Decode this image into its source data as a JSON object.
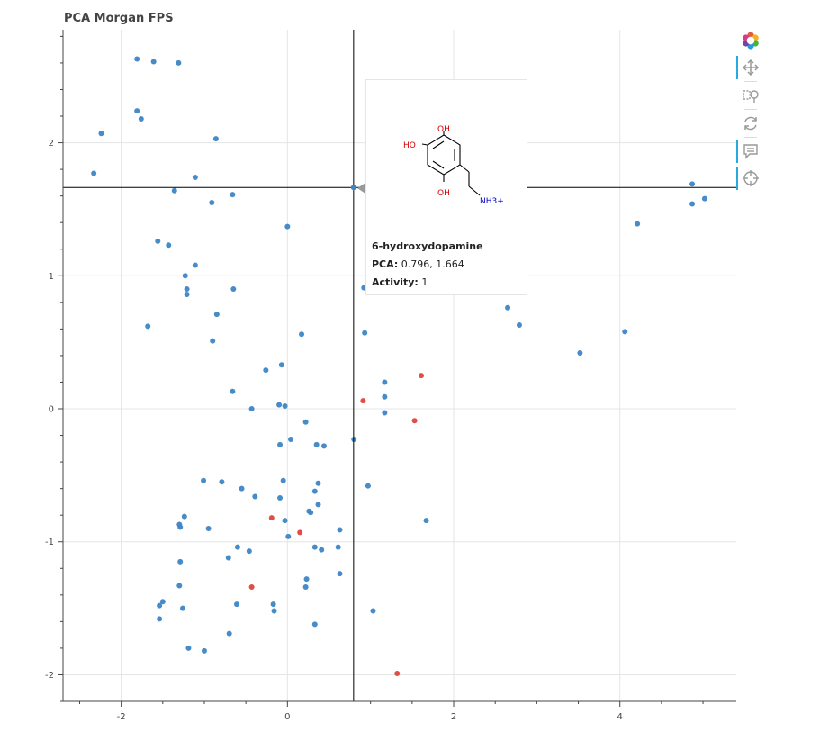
{
  "title": "PCA Morgan FPS",
  "colors": {
    "inactive": "#3d85c6",
    "active": "#e0453c",
    "grid": "#e5e5e5",
    "crosshair": "#000000"
  },
  "toolbar": [
    {
      "name": "bokeh-logo-icon",
      "active": false
    },
    {
      "name": "pan-icon",
      "active": true
    },
    {
      "name": "box-zoom-icon",
      "active": false
    },
    {
      "name": "reset-icon",
      "active": false
    },
    {
      "name": "hover-icon",
      "active": true
    },
    {
      "name": "crosshair-icon",
      "active": true
    }
  ],
  "tooltip": {
    "name": "6-hydroxydopamine",
    "pca_key": "PCA:",
    "pca_value": "0.796, 1.664",
    "activity_key": "Activity:",
    "activity_value": "1",
    "atoms": {
      "oh1": "OH",
      "ho": "HO",
      "oh2": "OH",
      "amine": "NH3+"
    }
  },
  "chart_data": {
    "type": "scatter",
    "title": "PCA Morgan FPS",
    "xlabel": "",
    "ylabel": "",
    "xlim": [
      -2.7,
      5.4
    ],
    "ylim": [
      -2.2,
      2.85
    ],
    "xticks": [
      -2,
      0,
      2,
      4
    ],
    "yticks": [
      -2,
      -1,
      0,
      1,
      2
    ],
    "grid": true,
    "crosshair": [
      0.796,
      1.664
    ],
    "series": [
      {
        "activity": 0,
        "points": [
          [
            -1.81,
            2.63
          ],
          [
            -1.61,
            2.61
          ],
          [
            -1.31,
            2.6
          ],
          [
            -1.81,
            2.24
          ],
          [
            -1.76,
            2.18
          ],
          [
            -2.24,
            2.07
          ],
          [
            -0.86,
            2.03
          ],
          [
            -2.33,
            1.77
          ],
          [
            -1.11,
            1.74
          ],
          [
            -1.36,
            1.64
          ],
          [
            -0.66,
            1.61
          ],
          [
            -0.91,
            1.55
          ],
          [
            0.0,
            1.37
          ],
          [
            -1.56,
            1.26
          ],
          [
            -1.43,
            1.23
          ],
          [
            -1.11,
            1.08
          ],
          [
            -1.23,
            1.0
          ],
          [
            -1.21,
            0.9
          ],
          [
            -1.21,
            0.86
          ],
          [
            -0.65,
            0.9
          ],
          [
            -0.85,
            0.71
          ],
          [
            -1.68,
            0.62
          ],
          [
            0.17,
            0.56
          ],
          [
            -0.9,
            0.51
          ],
          [
            0.93,
            0.57
          ],
          [
            -0.26,
            0.29
          ],
          [
            -0.07,
            0.33
          ],
          [
            1.17,
            0.2
          ],
          [
            -0.66,
            0.13
          ],
          [
            1.17,
            0.09
          ],
          [
            -0.43,
            0.0
          ],
          [
            -0.1,
            0.03
          ],
          [
            -0.03,
            0.02
          ],
          [
            1.17,
            -0.03
          ],
          [
            0.22,
            -0.1
          ],
          [
            0.04,
            -0.23
          ],
          [
            0.8,
            -0.23
          ],
          [
            -0.09,
            -0.27
          ],
          [
            0.35,
            -0.27
          ],
          [
            0.44,
            -0.28
          ],
          [
            -1.01,
            -0.54
          ],
          [
            -0.79,
            -0.55
          ],
          [
            -0.05,
            -0.54
          ],
          [
            0.37,
            -0.56
          ],
          [
            0.97,
            -0.58
          ],
          [
            -0.55,
            -0.6
          ],
          [
            0.33,
            -0.62
          ],
          [
            -0.39,
            -0.66
          ],
          [
            -0.09,
            -0.67
          ],
          [
            0.37,
            -0.72
          ],
          [
            0.26,
            -0.77
          ],
          [
            0.28,
            -0.78
          ],
          [
            -1.24,
            -0.81
          ],
          [
            -0.03,
            -0.84
          ],
          [
            1.67,
            -0.84
          ],
          [
            -1.3,
            -0.87
          ],
          [
            -1.29,
            -0.89
          ],
          [
            -0.95,
            -0.9
          ],
          [
            0.63,
            -0.91
          ],
          [
            0.01,
            -0.96
          ],
          [
            -0.6,
            -1.04
          ],
          [
            0.33,
            -1.04
          ],
          [
            0.61,
            -1.04
          ],
          [
            0.41,
            -1.06
          ],
          [
            -0.46,
            -1.07
          ],
          [
            -0.71,
            -1.12
          ],
          [
            -1.29,
            -1.15
          ],
          [
            0.63,
            -1.24
          ],
          [
            0.23,
            -1.28
          ],
          [
            -1.3,
            -1.33
          ],
          [
            0.22,
            -1.34
          ],
          [
            -0.61,
            -1.47
          ],
          [
            -0.17,
            -1.47
          ],
          [
            -1.5,
            -1.45
          ],
          [
            -1.54,
            -1.48
          ],
          [
            -1.26,
            -1.5
          ],
          [
            -0.16,
            -1.52
          ],
          [
            1.03,
            -1.52
          ],
          [
            -1.54,
            -1.58
          ],
          [
            0.33,
            -1.62
          ],
          [
            -0.7,
            -1.69
          ],
          [
            -1.19,
            -1.8
          ],
          [
            -1.0,
            -1.82
          ],
          [
            0.92,
            0.91
          ],
          [
            2.65,
            0.76
          ],
          [
            2.79,
            0.63
          ],
          [
            3.52,
            0.42
          ],
          [
            4.06,
            0.58
          ],
          [
            4.21,
            1.39
          ],
          [
            4.87,
            1.69
          ],
          [
            4.87,
            1.54
          ],
          [
            5.02,
            1.58
          ]
        ]
      },
      {
        "activity": 1,
        "points": [
          [
            1.61,
            0.25
          ],
          [
            0.91,
            0.06
          ],
          [
            1.53,
            -0.09
          ],
          [
            -0.19,
            -0.82
          ],
          [
            0.15,
            -0.93
          ],
          [
            -0.43,
            -1.34
          ],
          [
            1.32,
            -1.99
          ]
        ]
      }
    ]
  }
}
